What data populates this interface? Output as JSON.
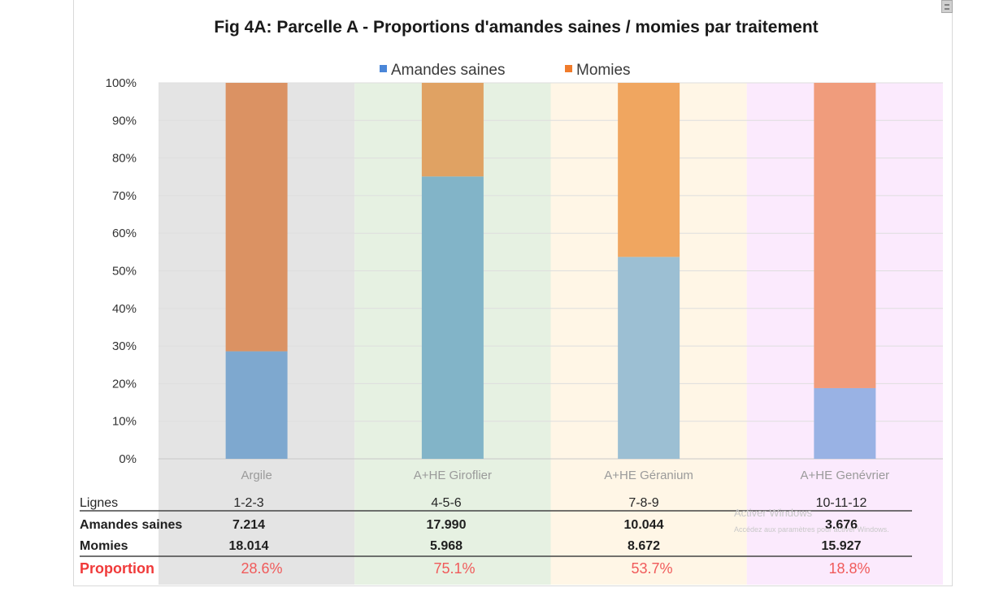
{
  "chart_data": {
    "type": "bar",
    "stacked": true,
    "percent_stacked": true,
    "title": "Fig 4A: Parcelle A - Proportions d'amandes saines / momies par traitement",
    "legend_position": "top",
    "categories": [
      "Argile",
      "A+HE Giroflier",
      "A+HE Géranium",
      "A+HE Genévrier"
    ],
    "series": [
      {
        "name": "Amandes saines",
        "values": [
          28.6,
          75.1,
          53.7,
          18.8
        ]
      },
      {
        "name": "Momies",
        "values": [
          71.4,
          24.9,
          46.3,
          81.2
        ]
      }
    ],
    "y_ticks": [
      "0%",
      "10%",
      "20%",
      "30%",
      "40%",
      "50%",
      "60%",
      "70%",
      "80%",
      "90%",
      "100%"
    ],
    "ylim": [
      0,
      100
    ],
    "grid": true,
    "band_colors": [
      "#e4e4e4",
      "#e6f1e2",
      "#fff6e6",
      "#fbeafd"
    ],
    "bar_colors_saines": [
      "#7ea8cf",
      "#82b4c8",
      "#9cbfd3",
      "#99b2e4"
    ],
    "bar_colors_momies": [
      "#db9263",
      "#e0a263",
      "#f0a660",
      "#f09c7c"
    ]
  },
  "legend_colors": {
    "saines": "#4a86d8",
    "momies": "#f07b2b"
  },
  "table": {
    "row_labels": [
      "Lignes",
      "Amandes saines",
      "Momies",
      "Proportion"
    ],
    "lignes": [
      "1-2-3",
      "4-5-6",
      "7-8-9",
      "10-11-12"
    ],
    "saines": [
      "7.214",
      "17.990",
      "10.044",
      "3.676"
    ],
    "momies": [
      "18.014",
      "5.968",
      "8.672",
      "15.927"
    ],
    "proportion": [
      "28.6%",
      "75.1%",
      "53.7%",
      "18.8%"
    ]
  },
  "watermark": {
    "line1": "Activer Windows",
    "line2": "Accédez aux paramètres pour activer Windows."
  }
}
